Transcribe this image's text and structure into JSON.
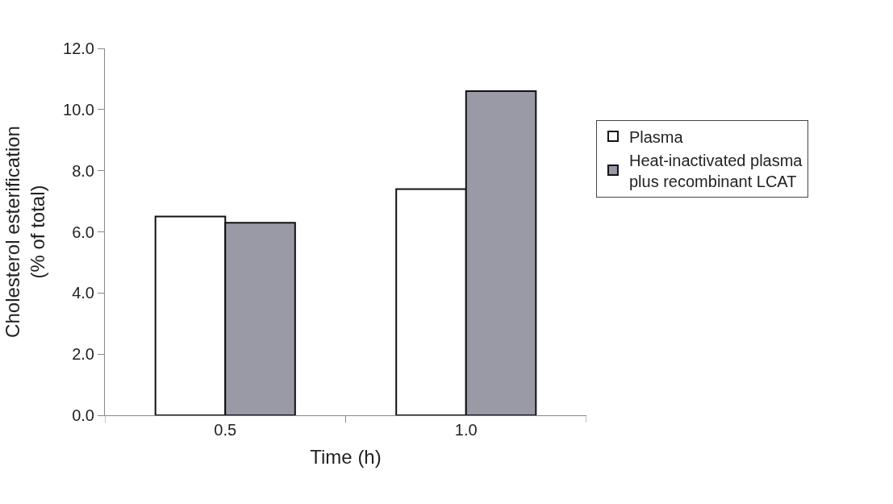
{
  "chart_data": {
    "type": "bar",
    "xlabel": "Time (h)",
    "ylabel": "Cholesterol esterification\n(% of total)",
    "categories": [
      "0.5",
      "1.0"
    ],
    "series": [
      {
        "name": "Plasma",
        "color": "#ffffff",
        "values": [
          6.5,
          7.4
        ]
      },
      {
        "name": "Heat-inactivated plasma\nplus recombinant LCAT",
        "color": "#9a9aa6",
        "values": [
          6.3,
          10.6
        ]
      }
    ],
    "ylim": [
      0,
      12
    ],
    "yticks": [
      {
        "value": 0,
        "label": "0.0"
      },
      {
        "value": 2,
        "label": "2.0"
      },
      {
        "value": 4,
        "label": "4.0"
      },
      {
        "value": 6,
        "label": "6.0"
      },
      {
        "value": 8,
        "label": "8.0"
      },
      {
        "value": 10,
        "label": "10.0"
      },
      {
        "value": 12,
        "label": "12.0"
      }
    ],
    "legend": "right"
  }
}
